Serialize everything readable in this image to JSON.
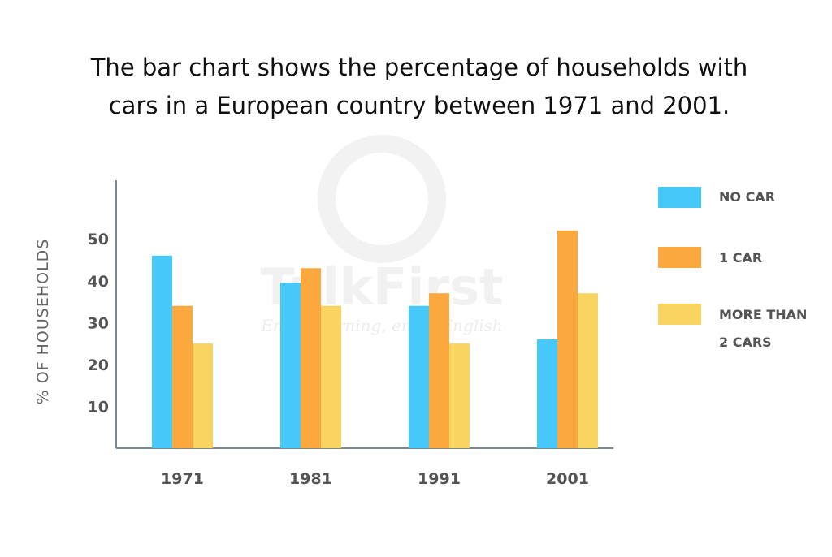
{
  "chart_data": {
    "type": "bar",
    "title_lines": [
      "The bar chart shows the percentage of households with",
      "cars in a European country between 1971 and 2001."
    ],
    "xlabel": "",
    "ylabel": "% OF HOUSEHOLDS",
    "categories": [
      "1971",
      "1981",
      "1991",
      "2001"
    ],
    "yticks": [
      10,
      20,
      30,
      40,
      50
    ],
    "ylim": [
      0,
      64
    ],
    "grid": false,
    "legend_position": "right",
    "series": [
      {
        "name": "NO CAR",
        "color": "#46c8f8",
        "values": [
          46,
          39.5,
          34,
          26
        ]
      },
      {
        "name": "1 CAR",
        "color": "#fba83f",
        "values": [
          34,
          43,
          37,
          52
        ]
      },
      {
        "name": "MORE THAN 2 CARS",
        "color": "#f9d461",
        "values": [
          25,
          34,
          25,
          37
        ]
      }
    ],
    "legend_lines": [
      [
        "NO CAR"
      ],
      [
        "1 CAR"
      ],
      [
        "MORE THAN",
        "2 CARS"
      ]
    ]
  },
  "watermark": {
    "brand": "TalkFirst",
    "tagline": "Enjoy learning, enjoy English"
  },
  "colors": {
    "axis": "#7a8596",
    "watermark": "#f1f1f1"
  }
}
